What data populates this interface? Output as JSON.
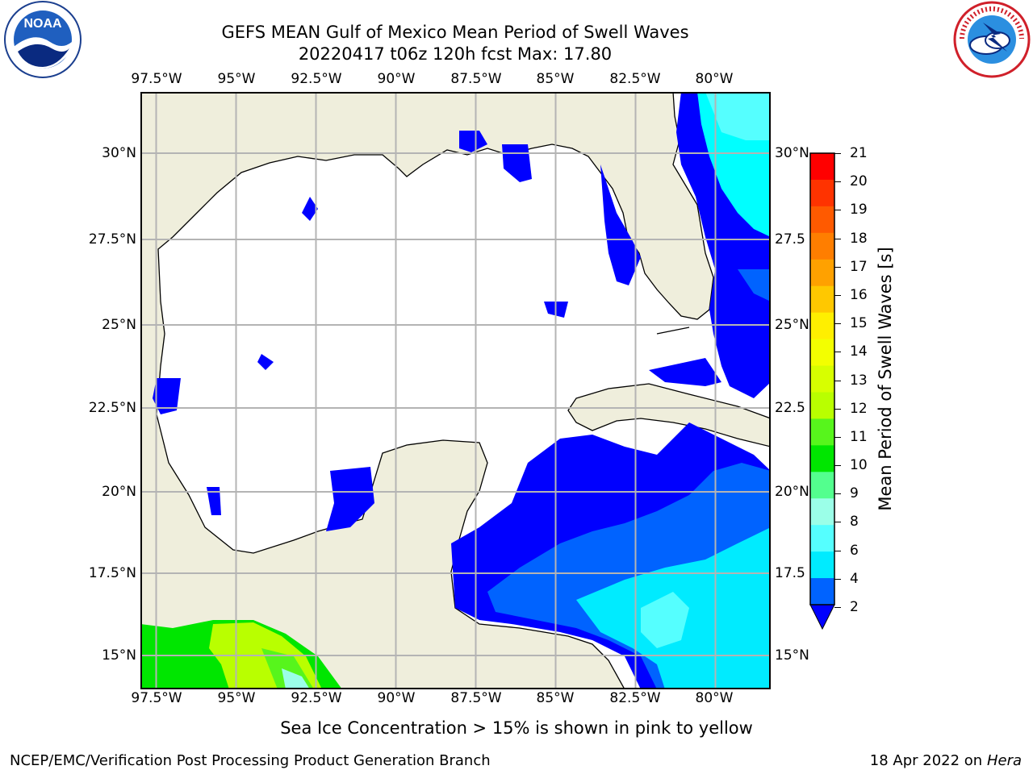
{
  "title": {
    "line1": "GEFS MEAN Gulf of Mexico Mean Period of Swell Waves",
    "line2": "20220417 t06z 120h fcst   Max: 17.80"
  },
  "logos": {
    "left": {
      "name": "noaa-logo",
      "text": "NOAA"
    },
    "right": {
      "name": "nws-logo",
      "text": "NATIONAL WEATHER SERVICE"
    }
  },
  "map": {
    "lon_labels": [
      "97.5°W",
      "95°W",
      "92.5°W",
      "90°W",
      "87.5°W",
      "85°W",
      "82.5°W",
      "80°W"
    ],
    "lat_labels": [
      "30°N",
      "27.5°N",
      "25°N",
      "22.5°N",
      "20°N",
      "17.5°N",
      "15°N"
    ],
    "lat_labels_right": [
      "30°N",
      "27.5",
      "25°N",
      "22.5",
      "20°N",
      "17.5",
      "15°N"
    ],
    "lon_range": [
      -98,
      -78.3
    ],
    "lat_range": [
      14,
      31.6
    ],
    "land_color": "#efeedc",
    "ocean_color": "#ffffff",
    "grid_color": "#b4b4b4"
  },
  "colorbar": {
    "label": "Mean Period of Swell Waves [s]",
    "ticks": [
      "21",
      "20",
      "19",
      "18",
      "17",
      "16",
      "15",
      "14",
      "13",
      "12",
      "11",
      "10",
      "9",
      "8",
      "6",
      "4",
      "2"
    ],
    "colors": [
      "#ff0000",
      "#ff3300",
      "#ff5a00",
      "#ff7e00",
      "#ffa100",
      "#ffc800",
      "#ffef00",
      "#f3ff00",
      "#d7ff00",
      "#b9ff00",
      "#57f51c",
      "#00e600",
      "#53ff8e",
      "#9bffe8",
      "#55ffff",
      "#00ebff",
      "#0063ff"
    ],
    "extend_color": "#0000ff"
  },
  "caption": "Sea Ice Concentration > 15% is shown in pink to yellow",
  "footer": {
    "left": "NCEP/EMC/Verification Post Processing Product Generation Branch",
    "right_date": "18 Apr 2022 on ",
    "right_host": "Hera"
  }
}
